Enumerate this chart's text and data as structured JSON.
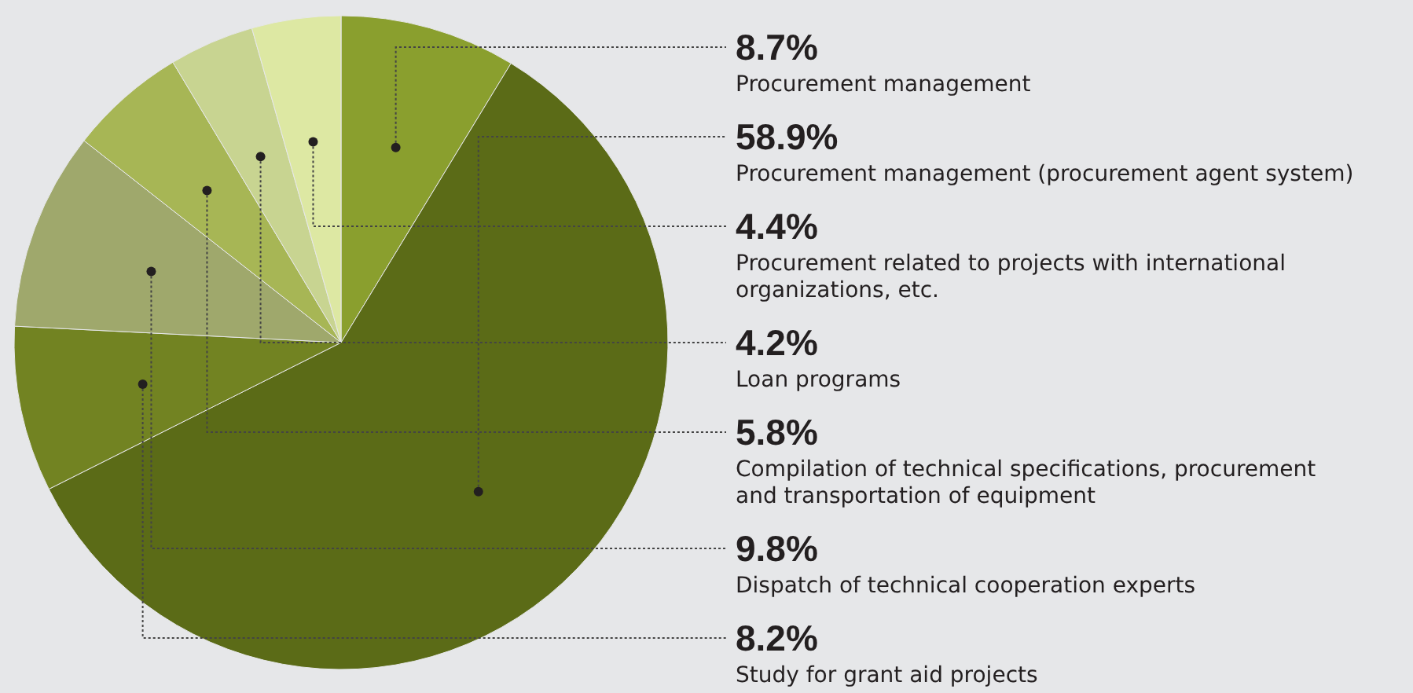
{
  "chart_data": {
    "type": "pie",
    "categories": [
      "Procurement management",
      "Procurement management (procurement agent system)",
      "Study for grant aid projects",
      "Dispatch of technical cooperation experts",
      "Compilation of technical specifications, procurement and transportation of equipment",
      "Loan programs",
      "Procurement related to projects with international organizations, etc."
    ],
    "values": [
      8.7,
      58.9,
      8.2,
      9.8,
      5.8,
      4.2,
      4.4
    ],
    "value_labels": [
      "8.7%",
      "58.9%",
      "8.2%",
      "9.8%",
      "5.8%",
      "4.2%",
      "4.4%"
    ],
    "colors": [
      "#8a9f2e",
      "#5b6b17",
      "#728322",
      "#9fa86c",
      "#a7b655",
      "#c8d491",
      "#dde8a3"
    ]
  }
}
